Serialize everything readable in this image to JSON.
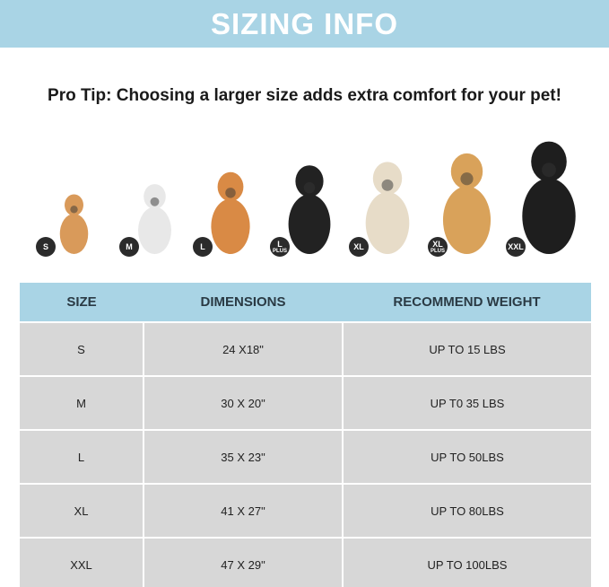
{
  "title": "SIZING INFO",
  "pro_tip": "Pro Tip: Choosing a larger size adds extra comfort for your pet!",
  "dogs": [
    {
      "badge": "S",
      "sub": "",
      "color": "#d99a5a"
    },
    {
      "badge": "M",
      "sub": "",
      "color": "#e8e8e8"
    },
    {
      "badge": "L",
      "sub": "",
      "color": "#d98a45"
    },
    {
      "badge": "L",
      "sub": "PLUS",
      "color": "#222222"
    },
    {
      "badge": "XL",
      "sub": "",
      "color": "#e7dcc8"
    },
    {
      "badge": "XL",
      "sub": "PLUS",
      "color": "#d9a25a"
    },
    {
      "badge": "XXL",
      "sub": "",
      "color": "#1e1e1e"
    }
  ],
  "table": {
    "headers": [
      "SIZE",
      "DIMENSIONS",
      "RECOMMEND WEIGHT"
    ],
    "rows": [
      [
        "S",
        "24 X18\"",
        "UP TO 15 LBS"
      ],
      [
        "M",
        "30 X 20\"",
        "UP T0 35 LBS"
      ],
      [
        "L",
        "35 X 23\"",
        "UP TO 50LBS"
      ],
      [
        "XL",
        "41 X 27\"",
        "UP TO 80LBS"
      ],
      [
        "XXL",
        "47 X 29\"",
        "UP TO 100LBS"
      ]
    ]
  }
}
